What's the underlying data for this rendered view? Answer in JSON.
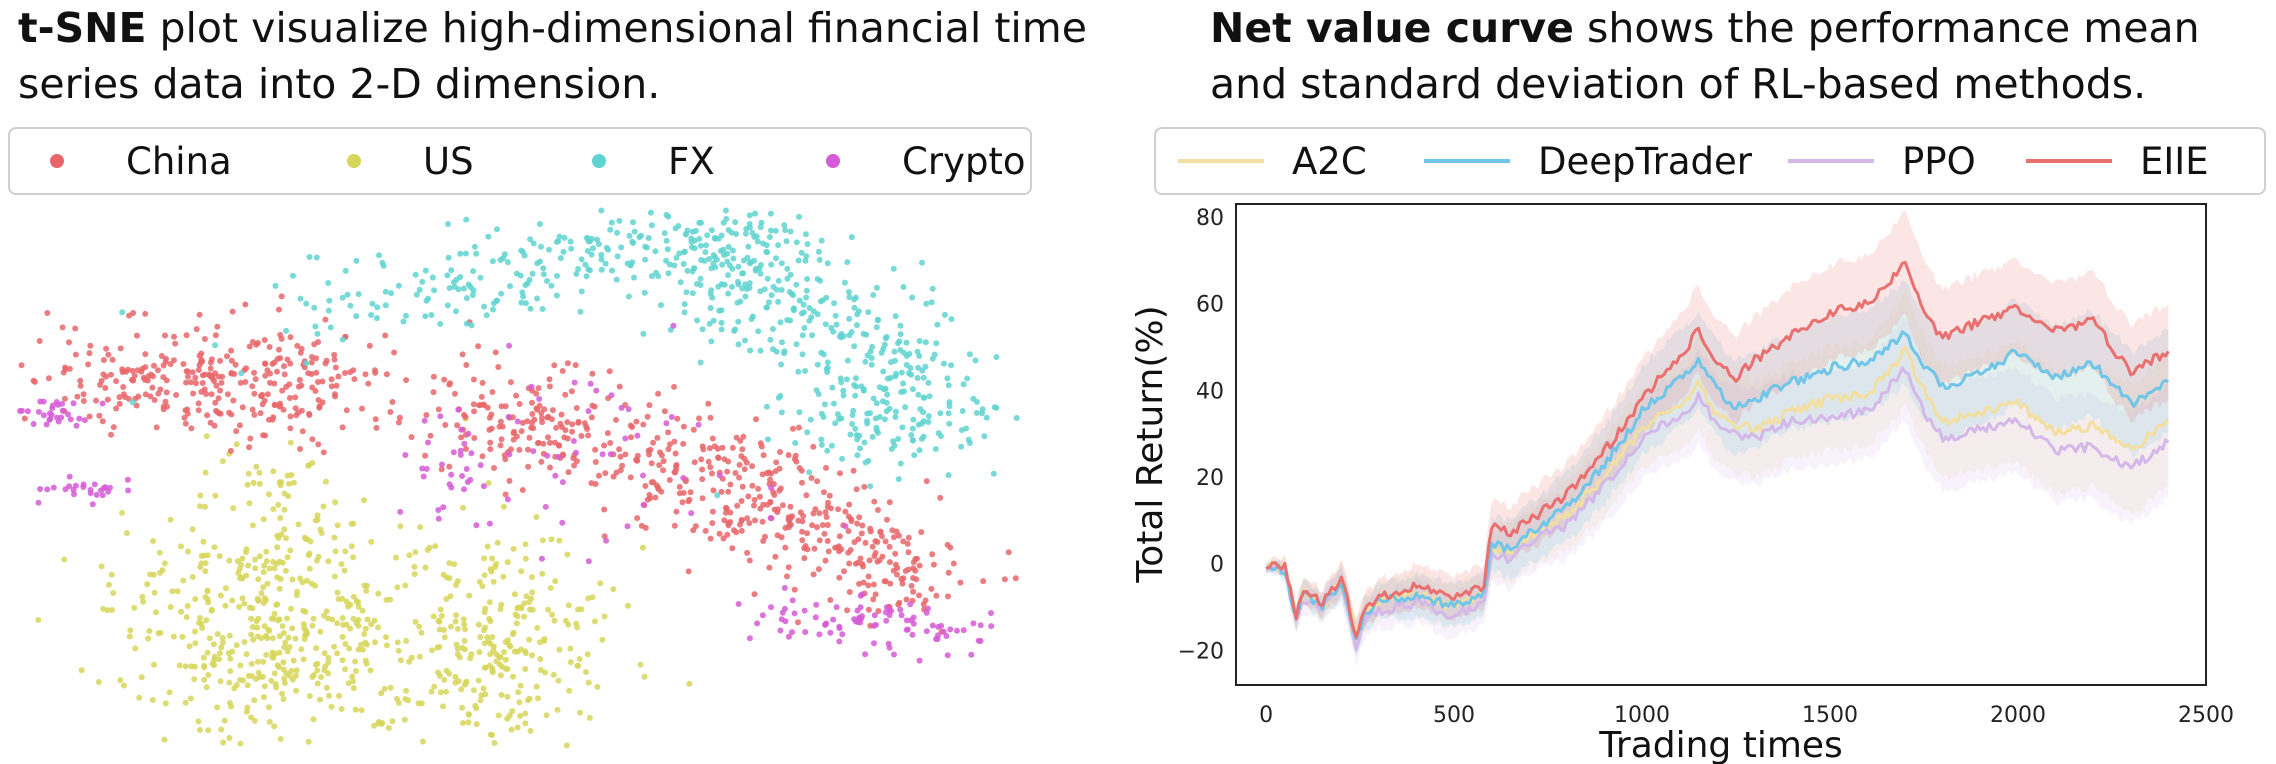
{
  "captions": {
    "left_bold": "t-SNE",
    "left_rest": " plot visualize high-dimensional financial time series data into 2-D dimension.",
    "right_bold": "Net value curve",
    "right_rest": " shows the performance mean and standard deviation of RL-based methods."
  },
  "colors": {
    "China": "#e8666a",
    "US": "#d6d65a",
    "FX": "#5fd3cf",
    "Crypto": "#d65bd6",
    "A2C": "#f3dfa0",
    "DeepTrader": "#6fc6e8",
    "PPO": "#d5b8ea",
    "EIIE": "#ea6f6f"
  },
  "chart_data": [
    {
      "type": "scatter",
      "legend": [
        "China",
        "US",
        "FX",
        "Crypto"
      ],
      "legend_position": "top",
      "axes": "hidden",
      "clusters": [
        {
          "name": "China",
          "regions": [
            "upper-left band",
            "center-right diagonal band"
          ]
        },
        {
          "name": "US",
          "regions": [
            "lower-left large cluster"
          ]
        },
        {
          "name": "FX",
          "regions": [
            "top arc",
            "right side cluster"
          ]
        },
        {
          "name": "Crypto",
          "regions": [
            "far-left edges",
            "lower-right tail",
            "scattered within China band"
          ]
        }
      ]
    },
    {
      "type": "line",
      "xlabel": "Trading times",
      "ylabel": "Total Return(%)",
      "xlim": [
        -80,
        2500
      ],
      "ylim": [
        -28,
        83
      ],
      "xticks": [
        0,
        500,
        1000,
        1500,
        2000,
        2500
      ],
      "yticks": [
        -20,
        0,
        20,
        40,
        60,
        80
      ],
      "legend_position": "top",
      "series": [
        {
          "name": "A2C",
          "x": [
            0,
            50,
            80,
            100,
            150,
            200,
            240,
            260,
            300,
            400,
            500,
            580,
            600,
            650,
            700,
            800,
            900,
            1000,
            1050,
            1100,
            1150,
            1200,
            1250,
            1300,
            1400,
            1500,
            1600,
            1700,
            1750,
            1800,
            1900,
            2000,
            2100,
            2200,
            2300,
            2400
          ],
          "y": [
            0,
            -1,
            -12,
            -6,
            -10,
            -3,
            -16,
            -11,
            -9,
            -7,
            -10,
            -7,
            3,
            2,
            6,
            11,
            20,
            31,
            35,
            36,
            42,
            34,
            32,
            31,
            35,
            38,
            39,
            49,
            40,
            33,
            35,
            37,
            30,
            32,
            26,
            33
          ],
          "std": [
            1,
            2,
            3,
            3,
            3,
            4,
            4,
            4,
            4,
            5,
            5,
            5,
            6,
            7,
            7,
            8,
            9,
            9,
            10,
            10,
            11,
            11,
            11,
            11,
            11,
            12,
            12,
            13,
            13,
            13,
            13,
            14,
            14,
            14,
            15,
            15
          ]
        },
        {
          "name": "DeepTrader",
          "x": [
            0,
            50,
            80,
            100,
            150,
            200,
            240,
            260,
            300,
            400,
            500,
            580,
            600,
            650,
            700,
            800,
            900,
            1000,
            1050,
            1100,
            1150,
            1200,
            1250,
            1300,
            1400,
            1500,
            1600,
            1700,
            1750,
            1800,
            1900,
            2000,
            2100,
            2200,
            2300,
            2400
          ],
          "y": [
            0,
            -2,
            -13,
            -7,
            -10,
            -4,
            -18,
            -12,
            -9,
            -7,
            -10,
            -7,
            5,
            3,
            7,
            13,
            23,
            35,
            39,
            43,
            47,
            40,
            36,
            38,
            42,
            45,
            47,
            53,
            46,
            41,
            44,
            49,
            43,
            46,
            37,
            42
          ],
          "std": [
            1,
            2,
            3,
            3,
            3,
            4,
            4,
            4,
            4,
            5,
            5,
            5,
            6,
            7,
            7,
            8,
            9,
            10,
            11,
            11,
            11,
            11,
            11,
            11,
            11,
            12,
            12,
            12,
            12,
            12,
            12,
            12,
            12,
            12,
            12,
            12
          ]
        },
        {
          "name": "PPO",
          "x": [
            0,
            50,
            80,
            100,
            150,
            200,
            240,
            260,
            300,
            400,
            500,
            580,
            600,
            650,
            700,
            800,
            900,
            1000,
            1050,
            1100,
            1150,
            1200,
            1250,
            1300,
            1400,
            1500,
            1600,
            1700,
            1750,
            1800,
            1900,
            2000,
            2100,
            2200,
            2300,
            2400
          ],
          "y": [
            0,
            -2,
            -13,
            -8,
            -11,
            -4,
            -19,
            -13,
            -11,
            -9,
            -12,
            -9,
            2,
            1,
            5,
            9,
            18,
            29,
            32,
            33,
            39,
            32,
            30,
            29,
            33,
            34,
            35,
            45,
            35,
            29,
            31,
            33,
            26,
            27,
            22,
            28
          ],
          "std": [
            1,
            2,
            3,
            3,
            3,
            4,
            4,
            4,
            4,
            5,
            5,
            5,
            6,
            7,
            7,
            8,
            9,
            9,
            10,
            10,
            11,
            11,
            11,
            11,
            11,
            11,
            11,
            12,
            12,
            12,
            12,
            12,
            12,
            12,
            13,
            13
          ]
        },
        {
          "name": "EIIE",
          "x": [
            0,
            50,
            80,
            100,
            150,
            200,
            240,
            260,
            300,
            400,
            500,
            580,
            600,
            650,
            700,
            800,
            900,
            1000,
            1050,
            1100,
            1150,
            1200,
            1250,
            1300,
            1400,
            1500,
            1600,
            1700,
            1750,
            1800,
            1900,
            2000,
            2100,
            2200,
            2300,
            2400
          ],
          "y": [
            0,
            -1,
            -12,
            -6,
            -9,
            -3,
            -17,
            -11,
            -8,
            -5,
            -8,
            -5,
            9,
            7,
            10,
            16,
            26,
            38,
            43,
            47,
            54,
            46,
            43,
            47,
            53,
            58,
            60,
            69,
            58,
            52,
            56,
            59,
            54,
            56,
            44,
            49
          ],
          "std": [
            1,
            2,
            3,
            3,
            3,
            4,
            4,
            4,
            4,
            5,
            5,
            5,
            6,
            6,
            7,
            7,
            8,
            9,
            9,
            10,
            10,
            10,
            10,
            10,
            11,
            11,
            11,
            12,
            12,
            11,
            11,
            11,
            11,
            11,
            11,
            11
          ]
        }
      ]
    }
  ]
}
